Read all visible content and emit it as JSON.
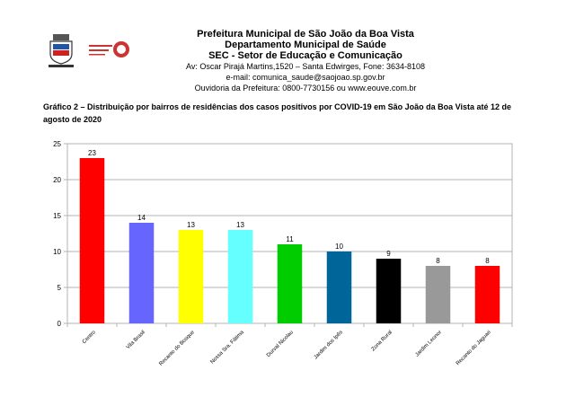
{
  "header": {
    "line1": "Prefeitura Municipal de São João da Boa Vista",
    "line2": "Departamento Municipal de Saúde",
    "line3": "SEC - Setor de Educação e Comunicação",
    "line4": "Av: Oscar Pirajá Martins,1520 – Santa Edwirges, Fone: 3634-8108",
    "line5": "e-mail: comunica_saude@saojoao.sp.gov.br",
    "line6": "Ouvidoria da Prefeitura: 0800-7730156 ou www.eouve.com.br"
  },
  "caption": "Gráfico 2 – Distribuição por bairros de residências dos casos positivos por COVID-19 em São João da Boa Vista até 12 de agosto de 2020",
  "colors": {
    "bars": [
      "#ff0000",
      "#6666ff",
      "#ffff00",
      "#66ffff",
      "#00cc00",
      "#006699",
      "#000000",
      "#999999",
      "#ff0000"
    ]
  },
  "chart_data": {
    "type": "bar",
    "categories": [
      "Centro",
      "Vila Brasil",
      "Recanto do Bosque",
      "Nossa Sra. Fátima",
      "Durval Nicolau",
      "Jardim dos Ipês",
      "Zona Rural",
      "Jardim Leonor",
      "Recanto do Jaguari"
    ],
    "values": [
      23,
      14,
      13,
      13,
      11,
      10,
      9,
      8,
      8
    ],
    "value_labels": [
      "23",
      "14",
      "13",
      "13",
      "11",
      "10",
      "9",
      "8",
      "8"
    ],
    "ylim": [
      0,
      25
    ],
    "yticks": [
      "0",
      "5",
      "10",
      "15",
      "20",
      "25"
    ],
    "grid": true,
    "title": "",
    "xlabel": "",
    "ylabel": ""
  }
}
